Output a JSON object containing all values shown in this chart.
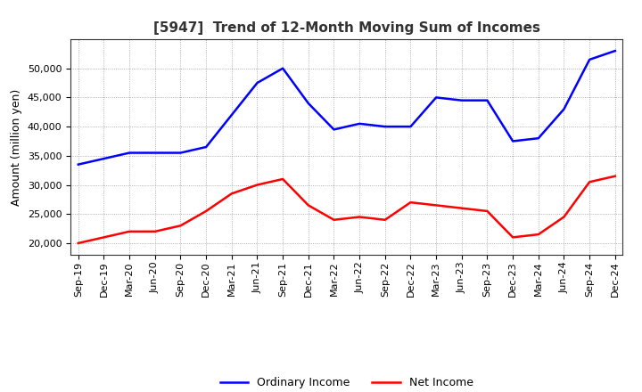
{
  "title": "[5947]  Trend of 12-Month Moving Sum of Incomes",
  "ylabel": "Amount (million yen)",
  "x_labels": [
    "Sep-19",
    "Dec-19",
    "Mar-20",
    "Jun-20",
    "Sep-20",
    "Dec-20",
    "Mar-21",
    "Jun-21",
    "Sep-21",
    "Dec-21",
    "Mar-22",
    "Jun-22",
    "Sep-22",
    "Dec-22",
    "Mar-23",
    "Jun-23",
    "Sep-23",
    "Dec-23",
    "Mar-24",
    "Jun-24",
    "Sep-24",
    "Dec-24"
  ],
  "ordinary_income": [
    33500,
    34500,
    35500,
    35500,
    35500,
    36500,
    42000,
    47500,
    50000,
    44000,
    39500,
    40500,
    40000,
    40000,
    45000,
    44500,
    44500,
    37500,
    38000,
    43000,
    51500,
    53000
  ],
  "net_income": [
    20000,
    21000,
    22000,
    22000,
    23000,
    25500,
    28500,
    30000,
    31000,
    26500,
    24000,
    24500,
    24000,
    27000,
    26500,
    26000,
    25500,
    21000,
    21500,
    24500,
    30500,
    31500
  ],
  "ordinary_color": "#0000ff",
  "net_color": "#ff0000",
  "background_color": "#ffffff",
  "plot_bg_color": "#ffffff",
  "grid_color": "#999999",
  "ylim": [
    18000,
    55000
  ],
  "yticks": [
    20000,
    25000,
    30000,
    35000,
    40000,
    45000,
    50000
  ],
  "line_width": 1.8,
  "title_fontsize": 11,
  "title_color": "#333333",
  "label_fontsize": 9,
  "tick_fontsize": 8,
  "legend_fontsize": 9
}
